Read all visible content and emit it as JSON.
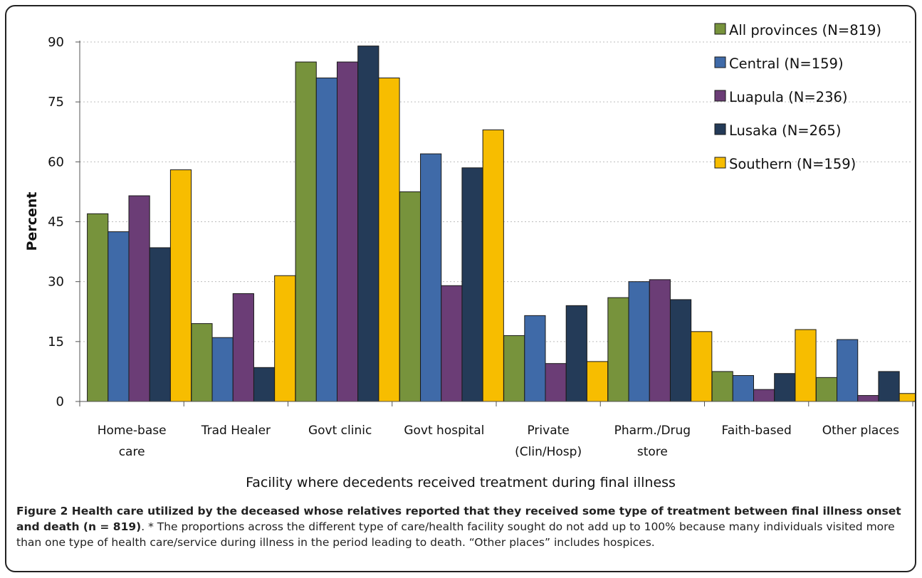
{
  "chart_data": {
    "type": "bar",
    "xlabel": "Facility where decedents received treatment during final illness",
    "ylabel": "Percent",
    "ylim": [
      0,
      90
    ],
    "yticks": [
      0,
      15,
      30,
      45,
      60,
      75,
      90
    ],
    "grid": "horizontal dotted",
    "legend_position": "top-right",
    "categories": [
      [
        "Home-base",
        "care"
      ],
      [
        "Trad Healer"
      ],
      [
        "Govt clinic"
      ],
      [
        "Govt hospital"
      ],
      [
        "Private",
        "(Clin/Hosp)"
      ],
      [
        "Pharm./Drug",
        "store"
      ],
      [
        "Faith-based"
      ],
      [
        "Other places"
      ]
    ],
    "series": [
      {
        "name": "All provinces (N=819)",
        "color": "#77933c",
        "values": [
          47,
          19.5,
          85,
          52.5,
          16.5,
          26,
          7.5,
          6
        ]
      },
      {
        "name": "Central (N=159)",
        "color": "#3f6aa8",
        "values": [
          42.5,
          16,
          81,
          62,
          21.5,
          30,
          6.5,
          15.5
        ]
      },
      {
        "name": "Luapula (N=236)",
        "color": "#6b3d76",
        "values": [
          51.5,
          27,
          85,
          29,
          9.5,
          30.5,
          3,
          1.5
        ]
      },
      {
        "name": "Lusaka (N=265)",
        "color": "#243b58",
        "values": [
          38.5,
          8.5,
          89,
          58.5,
          24,
          25.5,
          7,
          7.5
        ]
      },
      {
        "name": "Southern (N=159)",
        "color": "#f7bd00",
        "values": [
          58,
          31.5,
          81,
          68,
          10,
          17.5,
          18,
          2
        ]
      }
    ]
  },
  "caption": {
    "lead": "Figure 2 Health care utilized by the deceased whose relatives reported that they received some type of treatment between final illness onset and death (n = 819)",
    "body": ". * The proportions across the different type of care/health facility sought do not add up to 100% because many individuals visited more than one type of health care/service during illness in the period leading to death. “Other places” includes hospices."
  }
}
